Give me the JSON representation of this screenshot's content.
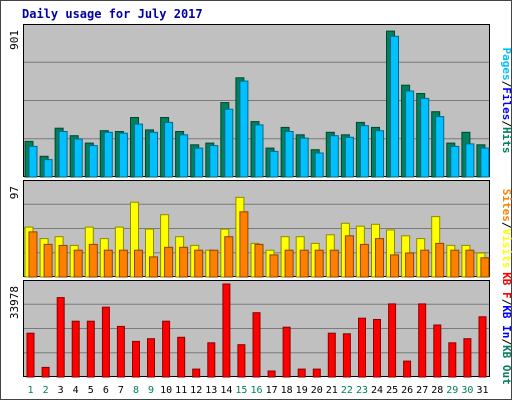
{
  "chart_data": [
    {
      "type": "bar",
      "title": "Daily usage for July 2017",
      "xlabel": "",
      "ylabel": "Pages / Files / Hits",
      "y_tick_label": "901",
      "ylim": [
        0,
        901
      ],
      "categories": [
        "1",
        "2",
        "3",
        "4",
        "5",
        "6",
        "7",
        "8",
        "9",
        "10",
        "11",
        "12",
        "13",
        "14",
        "15",
        "16",
        "17",
        "18",
        "19",
        "20",
        "21",
        "22",
        "23",
        "24",
        "25",
        "26",
        "27",
        "28",
        "29",
        "30",
        "31"
      ],
      "weekend_days": [
        "1",
        "2",
        "8",
        "9",
        "15",
        "16",
        "22",
        "23",
        "29",
        "30"
      ],
      "series": [
        {
          "name": "Hits",
          "color": "#00805c",
          "values": [
            215,
            125,
            295,
            250,
            205,
            280,
            275,
            360,
            285,
            360,
            275,
            195,
            205,
            450,
            600,
            335,
            175,
            300,
            255,
            165,
            270,
            255,
            330,
            300,
            882,
            555,
            505,
            395,
            205,
            270,
            195
          ]
        },
        {
          "name": "Files",
          "color": "#00c0ff",
          "values": [
            185,
            105,
            275,
            230,
            190,
            270,
            265,
            320,
            270,
            330,
            255,
            175,
            190,
            410,
            580,
            315,
            155,
            275,
            235,
            145,
            250,
            240,
            310,
            280,
            851,
            520,
            475,
            365,
            185,
            200,
            175
          ]
        }
      ],
      "grid": true
    },
    {
      "type": "bar",
      "ylabel": "Sites / Visits",
      "y_tick_label": "97",
      "ylim": [
        0,
        97
      ],
      "categories": [
        "1",
        "2",
        "3",
        "4",
        "5",
        "6",
        "7",
        "8",
        "9",
        "10",
        "11",
        "12",
        "13",
        "14",
        "15",
        "16",
        "17",
        "18",
        "19",
        "20",
        "21",
        "22",
        "23",
        "24",
        "25",
        "26",
        "27",
        "28",
        "29",
        "30",
        "31"
      ],
      "series": [
        {
          "name": "Visits",
          "color": "#ffff00",
          "values": [
            52,
            40,
            42,
            33,
            52,
            40,
            52,
            78,
            50,
            65,
            42,
            33,
            28,
            50,
            83,
            35,
            28,
            42,
            42,
            35,
            44,
            56,
            53,
            55,
            49,
            43,
            40,
            63,
            33,
            33,
            25
          ]
        },
        {
          "name": "Sites",
          "color": "#ff8000",
          "values": [
            47,
            34,
            33,
            28,
            34,
            28,
            28,
            28,
            21,
            31,
            31,
            28,
            28,
            42,
            68,
            34,
            23,
            28,
            28,
            28,
            28,
            43,
            34,
            40,
            23,
            25,
            28,
            35,
            28,
            28,
            20
          ]
        }
      ],
      "grid": true
    },
    {
      "type": "bar",
      "ylabel": "KB F / KB In / KB Out",
      "y_tick_label": "33978",
      "ylim": [
        0,
        33978
      ],
      "categories": [
        "1",
        "2",
        "3",
        "4",
        "5",
        "6",
        "7",
        "8",
        "9",
        "10",
        "11",
        "12",
        "13",
        "14",
        "15",
        "16",
        "17",
        "18",
        "19",
        "20",
        "21",
        "22",
        "23",
        "24",
        "25",
        "26",
        "27",
        "28",
        "29",
        "30",
        "31"
      ],
      "series": [
        {
          "name": "KB F",
          "color": "#ff0000",
          "values": [
            16000,
            3500,
            29000,
            20400,
            20400,
            25500,
            18500,
            13000,
            14000,
            20400,
            14500,
            2900,
            12500,
            33978,
            11800,
            23500,
            2200,
            18200,
            2900,
            2900,
            16000,
            15800,
            21500,
            21000,
            26700,
            5800,
            26700,
            19000,
            12500,
            14000,
            22000
          ]
        }
      ],
      "grid": true
    }
  ]
}
